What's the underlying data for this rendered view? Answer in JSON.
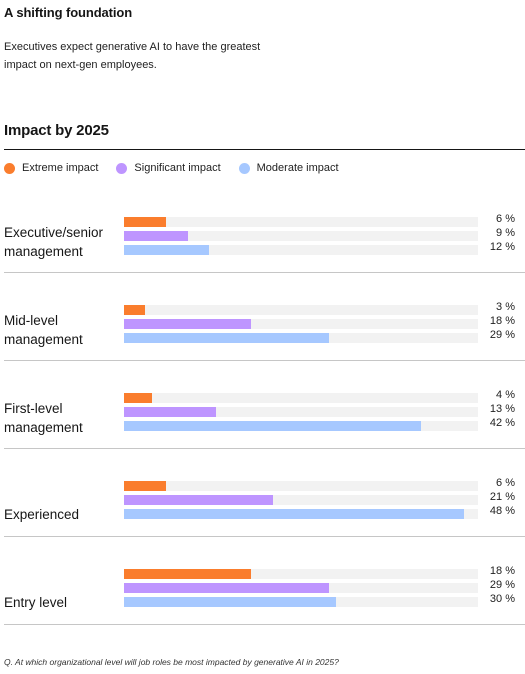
{
  "header": {
    "title": "A shifting foundation",
    "subtitle": "Executives expect generative AI to have the greatest impact on next-gen employees."
  },
  "section": {
    "title": "Impact by 2025"
  },
  "footnote": "Q. At which organizational level will job roles be most impacted by generative AI in 2025?",
  "colors": {
    "extreme": "#fa7d2d",
    "significant": "#be95ff",
    "moderate": "#a6c8ff",
    "track": "#f2f2f2"
  },
  "chart_data": {
    "type": "bar",
    "orientation": "horizontal",
    "title": "Impact by 2025",
    "xlim": [
      0,
      50
    ],
    "grid": false,
    "legend_placement": "top-left",
    "categories": [
      "Executive/senior management",
      "Mid-level management",
      "First-level management",
      "Experienced",
      "Entry level"
    ],
    "series": [
      {
        "name": "Extreme impact",
        "color": "#fa7d2d",
        "values": [
          6,
          3,
          4,
          6,
          18
        ],
        "labels": [
          "6 %",
          "3 %",
          "4 %",
          "6 %",
          "18 %"
        ]
      },
      {
        "name": "Significant impact",
        "color": "#be95ff",
        "values": [
          9,
          18,
          13,
          21,
          29
        ],
        "labels": [
          "9 %",
          "18 %",
          "13 %",
          "21 %",
          "29 %"
        ]
      },
      {
        "name": "Moderate impact",
        "color": "#a6c8ff",
        "values": [
          12,
          29,
          42,
          48,
          30
        ],
        "labels": [
          "12 %",
          "29 %",
          "42 %",
          "48 %",
          "30 %"
        ]
      }
    ]
  }
}
